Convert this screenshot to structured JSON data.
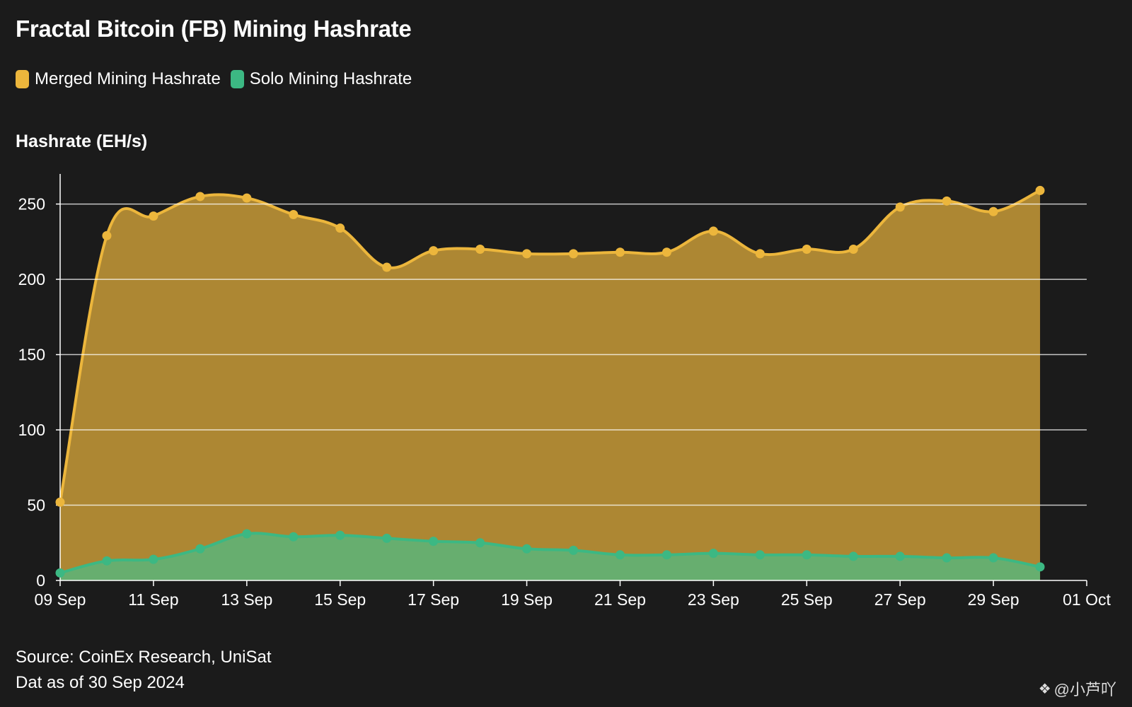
{
  "title": "Fractal Bitcoin (FB) Mining Hashrate",
  "legend": [
    {
      "label": "Merged Mining Hashrate",
      "color": "#ecb63c"
    },
    {
      "label": "Solo Mining Hashrate",
      "color": "#3cb883"
    }
  ],
  "footer": {
    "source": "Source: CoinEx Research, UniSat",
    "date_note": "Dat as of 30 Sep 2024"
  },
  "watermark": {
    "icon": "binance-diamond-icon",
    "text": "@小芦吖"
  },
  "chart_data": {
    "type": "area",
    "ylabel": "Hashrate (EH/s)",
    "xlabel": "",
    "ylim": [
      0,
      270
    ],
    "yticks": [
      0,
      50,
      100,
      150,
      200,
      250
    ],
    "x_start": "2024-09-09",
    "x_end": "2024-10-01",
    "xticks": [
      "09 Sep",
      "11 Sep",
      "13 Sep",
      "15 Sep",
      "17 Sep",
      "19 Sep",
      "21 Sep",
      "23 Sep",
      "25 Sep",
      "27 Sep",
      "29 Sep",
      "01 Oct"
    ],
    "x": [
      "2024-09-09",
      "2024-09-10",
      "2024-09-11",
      "2024-09-12",
      "2024-09-13",
      "2024-09-14",
      "2024-09-15",
      "2024-09-16",
      "2024-09-17",
      "2024-09-18",
      "2024-09-19",
      "2024-09-20",
      "2024-09-21",
      "2024-09-22",
      "2024-09-23",
      "2024-09-24",
      "2024-09-25",
      "2024-09-26",
      "2024-09-27",
      "2024-09-28",
      "2024-09-29",
      "2024-09-30"
    ],
    "grid": true,
    "legend_position": "top-left",
    "series": [
      {
        "name": "Merged Mining Hashrate",
        "color": "#ecb63c",
        "fill": "#ad8733",
        "values": [
          52,
          229,
          242,
          255,
          254,
          243,
          234,
          208,
          219,
          220,
          217,
          217,
          218,
          218,
          232,
          217,
          220,
          220,
          248,
          252,
          245,
          259
        ]
      },
      {
        "name": "Solo Mining Hashrate",
        "color": "#3cb883",
        "fill": "#67ae6f",
        "values": [
          5,
          13,
          14,
          21,
          31,
          29,
          30,
          28,
          26,
          25,
          21,
          20,
          17,
          17,
          18,
          17,
          17,
          16,
          16,
          15,
          15,
          9
        ]
      }
    ]
  }
}
